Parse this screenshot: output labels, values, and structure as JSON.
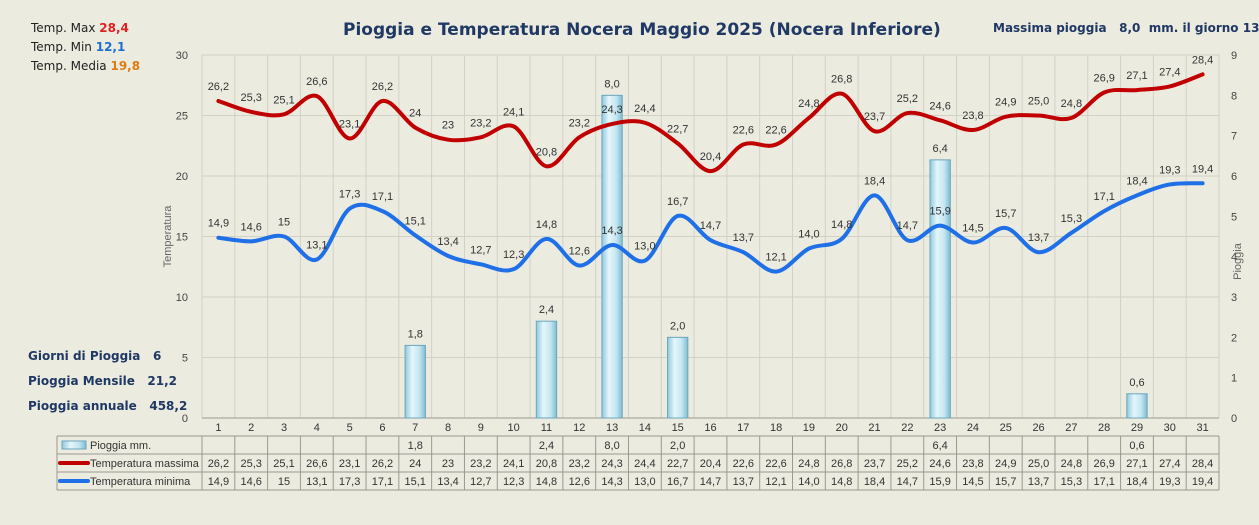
{
  "title": "Pioggia e Temperatura Nocera Maggio 2025 (Nocera Inferiore)",
  "max_rain": {
    "label": "Massima pioggia",
    "value": "8,0",
    "suffix": "mm. il giorno 13"
  },
  "stats": {
    "tmax_label": "Temp. Max",
    "tmax_value": "28,4",
    "tmax_color": "#e02020",
    "tmin_label": "Temp.  Min",
    "tmin_value": "12,1",
    "tmin_color": "#1f6fd0",
    "tmed_label": "Temp. Media",
    "tmed_value": "19,8",
    "tmed_color": "#e07b10"
  },
  "summary": {
    "rain_days_label": "Giorni di Pioggia",
    "rain_days_value": "6",
    "monthly_label": "Pioggia Mensile",
    "monthly_value": "21,2",
    "annual_label": "Pioggia annuale",
    "annual_value": "458,2"
  },
  "chart_data": {
    "type": "line",
    "x": [
      1,
      2,
      3,
      4,
      5,
      6,
      7,
      8,
      9,
      10,
      11,
      12,
      13,
      14,
      15,
      16,
      17,
      18,
      19,
      20,
      21,
      22,
      23,
      24,
      25,
      26,
      27,
      28,
      29,
      30,
      31
    ],
    "ylabel": "Temperatura",
    "y2label": "Pioggia",
    "ylim": [
      0,
      30
    ],
    "y2lim": [
      0,
      9
    ],
    "yticks": [
      0,
      5,
      10,
      15,
      20,
      25,
      30
    ],
    "y2ticks": [
      0,
      1,
      2,
      3,
      4,
      5,
      6,
      7,
      8,
      9
    ],
    "grid": true,
    "series": [
      {
        "name": "Pioggia mm.",
        "kind": "bar",
        "axis": "right",
        "color": "#b7e0ee",
        "values": [
          null,
          null,
          null,
          null,
          null,
          null,
          1.8,
          null,
          null,
          null,
          2.4,
          null,
          8.0,
          null,
          2.0,
          null,
          null,
          null,
          null,
          null,
          null,
          null,
          6.4,
          null,
          null,
          null,
          null,
          null,
          0.6,
          null,
          null
        ],
        "labels": [
          "",
          "",
          "",
          "",
          "",
          "",
          "1,8",
          "",
          "",
          "",
          "2,4",
          "",
          "8,0",
          "",
          "2,0",
          "",
          "",
          "",
          "",
          "",
          "",
          "",
          "6,4",
          "",
          "",
          "",
          "",
          "",
          "0,6",
          "",
          ""
        ]
      },
      {
        "name": "Temperatura massima",
        "kind": "line",
        "axis": "left",
        "color": "#c00000",
        "values": [
          26.2,
          25.3,
          25.1,
          26.6,
          23.1,
          26.2,
          24,
          23,
          23.2,
          24.1,
          20.8,
          23.2,
          24.3,
          24.4,
          22.7,
          20.4,
          22.6,
          22.6,
          24.8,
          26.8,
          23.7,
          25.2,
          24.6,
          23.8,
          24.9,
          25.0,
          24.8,
          26.9,
          27.1,
          27.4,
          28.4
        ],
        "labels": [
          "26,2",
          "25,3",
          "25,1",
          "26,6",
          "23,1",
          "26,2",
          "24",
          "23",
          "23,2",
          "24,1",
          "20,8",
          "23,2",
          "24,3",
          "24,4",
          "22,7",
          "20,4",
          "22,6",
          "22,6",
          "24,8",
          "26,8",
          "23,7",
          "25,2",
          "24,6",
          "23,8",
          "24,9",
          "25,0",
          "24,8",
          "26,9",
          "27,1",
          "27,4",
          "28,4"
        ]
      },
      {
        "name": "Temperatura minima",
        "kind": "line",
        "axis": "left",
        "color": "#1f6fe6",
        "values": [
          14.9,
          14.6,
          15,
          13.1,
          17.3,
          17.1,
          15.1,
          13.4,
          12.7,
          12.3,
          14.8,
          12.6,
          14.3,
          13.0,
          16.7,
          14.7,
          13.7,
          12.1,
          14.0,
          14.8,
          18.4,
          14.7,
          15.9,
          14.5,
          15.7,
          13.7,
          15.3,
          17.1,
          18.4,
          19.3,
          19.4
        ],
        "labels": [
          "14,9",
          "14,6",
          "15",
          "13,1",
          "17,3",
          "17,1",
          "15,1",
          "13,4",
          "12,7",
          "12,3",
          "14,8",
          "12,6",
          "14,3",
          "13,0",
          "16,7",
          "14,7",
          "13,7",
          "12,1",
          "14,0",
          "14,8",
          "18,4",
          "14,7",
          "15,9",
          "14,5",
          "15,7",
          "13,7",
          "15,3",
          "17,1",
          "18,4",
          "19,3",
          "19,4"
        ]
      }
    ]
  }
}
